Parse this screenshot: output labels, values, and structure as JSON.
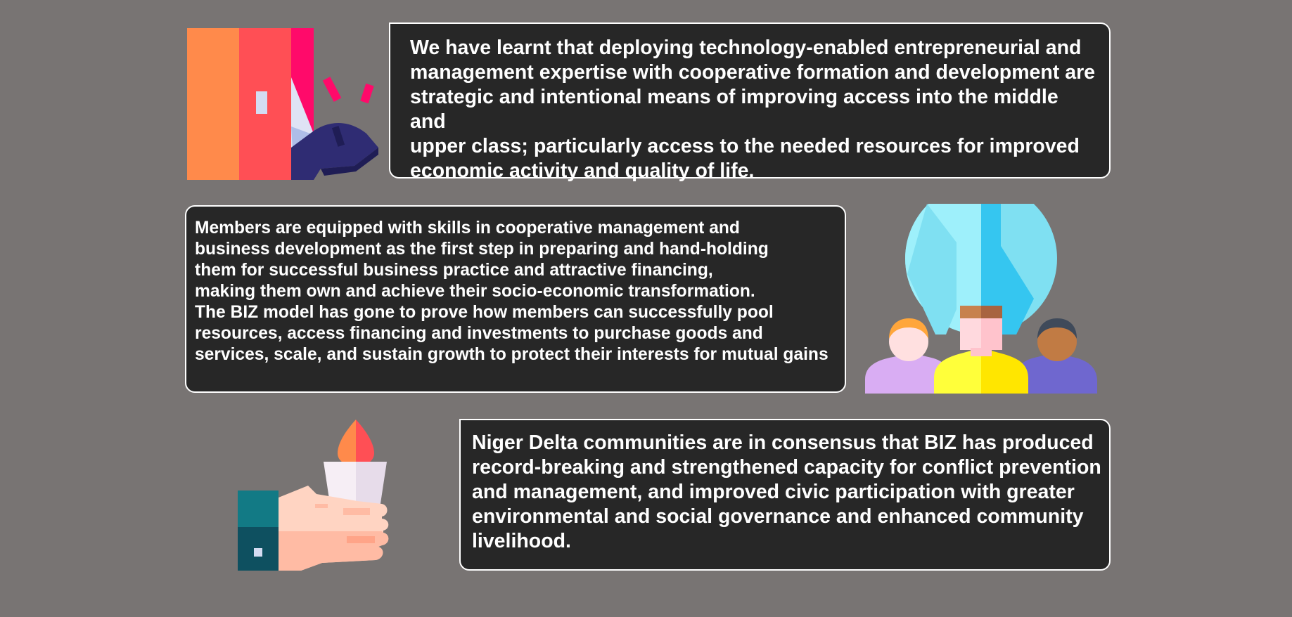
{
  "cards": [
    {
      "text": "We have learnt that deploying technology-enabled entrepreneurial and\nmanagement expertise with cooperative formation and development are\nstrategic and intentional means of improving access into the middle and\nupper class; particularly access to the needed resources for improved\neconomic activity and quality of life."
    },
    {
      "text": "Members are equipped with skills in cooperative management and\nbusiness development as the first step in preparing and hand-holding\nthem for successful business practice and attractive financing,\nmaking them own and achieve their socio-economic transformation.\nThe BIZ model has gone to prove how members can successfully pool\n resources, access financing and investments to purchase goods and\nservices, scale, and sustain growth to protect their interests for mutual gains"
    },
    {
      "text": "Niger Delta communities are in consensus that BIZ has produced\nrecord-breaking and strengthened capacity for conflict prevention\nand management, and improved civic participation with greater\nenvironmental and social governance and enhanced community\nlivelihood."
    }
  ],
  "illustrations": [
    {
      "icon": "door-kick-icon"
    },
    {
      "icon": "global-team-icon"
    },
    {
      "icon": "hand-torch-icon"
    }
  ],
  "colors": {
    "background": "#787473",
    "card_background": "#272727",
    "card_border": "#ffffff",
    "text": "#ffffff"
  }
}
